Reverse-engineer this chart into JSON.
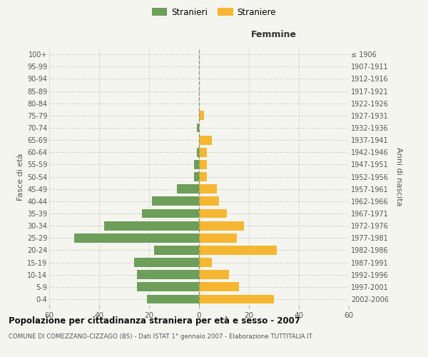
{
  "age_groups": [
    "0-4",
    "5-9",
    "10-14",
    "15-19",
    "20-24",
    "25-29",
    "30-34",
    "35-39",
    "40-44",
    "45-49",
    "50-54",
    "55-59",
    "60-64",
    "65-69",
    "70-74",
    "75-79",
    "80-84",
    "85-89",
    "90-94",
    "95-99",
    "100+"
  ],
  "birth_years": [
    "2002-2006",
    "1997-2001",
    "1992-1996",
    "1987-1991",
    "1982-1986",
    "1977-1981",
    "1972-1976",
    "1967-1971",
    "1962-1966",
    "1957-1961",
    "1952-1956",
    "1947-1951",
    "1942-1946",
    "1937-1941",
    "1932-1936",
    "1927-1931",
    "1922-1926",
    "1917-1921",
    "1912-1916",
    "1907-1911",
    "≤ 1906"
  ],
  "males": [
    21,
    25,
    25,
    26,
    18,
    50,
    38,
    23,
    19,
    9,
    2,
    2,
    1,
    0,
    1,
    0,
    0,
    0,
    0,
    0,
    0
  ],
  "females": [
    30,
    16,
    12,
    5,
    31,
    15,
    18,
    11,
    8,
    7,
    3,
    3,
    3,
    5,
    0,
    2,
    0,
    0,
    0,
    0,
    0
  ],
  "male_color": "#6d9e5a",
  "female_color": "#f5b731",
  "background_color": "#f5f5f0",
  "grid_color": "#cccccc",
  "title": "Popolazione per cittadinanza straniera per età e sesso - 2007",
  "subtitle": "COMUNE DI COMEZZANO-CIZZAGO (BS) - Dati ISTAT 1° gennaio 2007 - Elaborazione TUTTITALIA.IT",
  "header_right": "Femmine",
  "ylabel_left": "Fasce di età",
  "ylabel_right": "Anni di nascita",
  "legend_males": "Stranieri",
  "legend_females": "Straniere",
  "xlim": 60,
  "bar_height": 0.75
}
